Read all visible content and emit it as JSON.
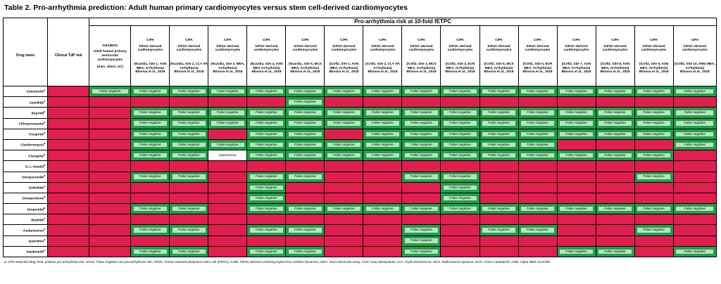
{
  "title": "Table 2. Pro-arrhythmia prediction: Adult human primary cardiomyocytes versus stem cell-derived cardiomyocytes",
  "header": {
    "drug_name": "Drug name",
    "tdp_risk": "Clinical TdP risk",
    "risk_title": "Pro-arrhythmia risk at 10-fold fETPC"
  },
  "columns": [
    {
      "org": "ANABIOS",
      "desc": "Adult human primary ventricular cardiomyocytes",
      "src": "(Sarc. Short. AC)"
    },
    {
      "org": "CiPA",
      "desc": "hiPSC-derived cardiomyocytes",
      "src": "(Ncardia, Site 1, AXN MEA, Arrhythmia)\nBlinova et al., 2018"
    },
    {
      "org": "CiPA",
      "desc": "hiPSC-derived cardiomyocytes",
      "src": "(Ncardia, Site 2, CLY AP, Arrhythmia)\nBlinova et al., 2018"
    },
    {
      "org": "CiPA",
      "desc": "hiPSC-derived cardiomyocytes",
      "src": "(Ncardia, Site 3, MEA, Arrhythmia)\nBlinova et al., 2018"
    },
    {
      "org": "CiPA",
      "desc": "hiPSC-derived cardiomyocytes",
      "src": "(Ncardia, Site 4, AXN MEA Arrhythmia)\nBlinova et al., 2018"
    },
    {
      "org": "CiPA",
      "desc": "hiPSC-derived cardiomyocytes",
      "src": "(Ncardia, Site 5, MCS MEA, Arrhythmia)\nBlinova et al., 2018"
    },
    {
      "org": "CiPA",
      "desc": "hiPSC-derived cardiomyocytes",
      "src": "(iCell2, Site 1, AXN MEA, Arrhythmia)\nBlinova et al., 2018"
    },
    {
      "org": "CiPA",
      "desc": "hiPSC-derived cardiomyocytes",
      "src": "(iCell2, Site 2, CLY AP, Arrhythmia)\nBlinova et al., 2018"
    },
    {
      "org": "CiPA",
      "desc": "hiPSC-derived cardiomyocytes",
      "src": "(iCell2, Site 3, MCS MEA, Arrhythmia)\nBlinova et al., 2018"
    },
    {
      "org": "CiPA",
      "desc": "hiPSC-derived cardiomyocytes",
      "src": "(iCell2, Site 4, ECR MEA, Arrhythmia)\nBlinova et al., 2018"
    },
    {
      "org": "CiPA",
      "desc": "hiPSC-derived cardiomyocytes",
      "src": "(iCell2, Site 5, MCS MEA, Arrhythmia)\nBlinova et al., 2018"
    },
    {
      "org": "CiPA",
      "desc": "hiPSC-derived cardiomyocytes",
      "src": "(iCell2, Site 6, ECR MEA, Arrhythmia)\nBlinova et al., 2018"
    },
    {
      "org": "CiPA",
      "desc": "hiPSC-derived cardiomyocytes",
      "src": "(iCell2, Site 7, AXN MEA, Arrhythmia)\nBlinova et al., 2018"
    },
    {
      "org": "CiPA",
      "desc": "hiPSC-derived cardiomyocytes",
      "src": "(iCell2, Site 8, AXN MEA, Arrhythmia)\nBlinova et al., 2018"
    },
    {
      "org": "CiPA",
      "desc": "hiPSC-derived cardiomyocytes",
      "src": "(iCell2, Site 9, AXN MEA, Arrhythmia)\nBlinova et al., 2018"
    },
    {
      "org": "CiPA",
      "desc": "hiPSC-derived cardiomyocytes",
      "src": "(iCell2, Site 10, AMD MEA, Arrhythmia)\nBlinova et al., 2018"
    }
  ],
  "labels": {
    "false_negative": "False negative",
    "quiescence": "Quiescence"
  },
  "colors": {
    "positive": "#e11e50",
    "false_negative": "#20a14a",
    "false_negative_text_bg": "#b7e4c2"
  },
  "rows": [
    {
      "drug": "Astemizole",
      "sup": "a",
      "cells": "GGGGGGGGGGGGGGGG"
    },
    {
      "drug": "Azimilide",
      "sup": "a",
      "cells": "RRRRRGRRRRRRRRRR"
    },
    {
      "drug": "Bepridil",
      "sup": "a",
      "cells": "RGGGGGGGGGGGGGGG"
    },
    {
      "drug": "Chlorpromazine",
      "sup": "a",
      "cells": "RGGGGGGGGGGGGGGG"
    },
    {
      "drug": "Cisapride",
      "sup": "a",
      "cells": "RGGRGGRGGGGGGGGG"
    },
    {
      "drug": "Clarithromycin",
      "sup": "a",
      "cells": "RGGGGGGGGGGGRRRG"
    },
    {
      "drug": "Clozapine",
      "sup": "a",
      "cells": "RGGQGGGGGGGGGGGR"
    },
    {
      "drug": "D, L-Sotalol",
      "sup": "a",
      "cells": "RRRRRRRRRRRRRRRR"
    },
    {
      "drug": "Disopyramide",
      "sup": "a",
      "cells": "RGGRGGRRGGRRRRGR"
    },
    {
      "drug": "Dofetilide",
      "sup": "a",
      "cells": "RRRRGRRRRGRRRRRR"
    },
    {
      "drug": "Domperidone",
      "sup": "a",
      "cells": "RRRRGRRRRGRRRRRR"
    },
    {
      "drug": "Droperidol",
      "sup": "a",
      "cells": "RGGRGGGGGGGGGGGG"
    },
    {
      "drug": "Ibutilide",
      "sup": "a",
      "cells": "RRRRRRRRRRRRRRRR"
    },
    {
      "drug": "Ondansetron",
      "sup": "a",
      "cells": "RGGRGGRRGRGGRRGR"
    },
    {
      "drug": "Quinidine",
      "sup": "a",
      "cells": "RRRRRRRRGRRRRRRR"
    },
    {
      "drug": "Vandetanib",
      "sup": "a",
      "cells": "RGGRGGRRGRRRGGRG"
    }
  ],
  "footnote": "a: CiPA-selected drug;    Red: positive pro-arrhythmia risk;    Green: False negative non-pro-arrhythmia risk;    hiPSC: human induced pluripotent stem cell (hiPSC);    iCell2: hiPSC-derived cardiomyocytes from Cellular Dynamics;    MEA: micro-electrode array;    AXN: Axion Biosystems; CLY: Clyde Biosciences;    MCS: Multichannel Systems;    ECR: ACEA CardioECR;    AMD: Alpha MED Scientific."
}
